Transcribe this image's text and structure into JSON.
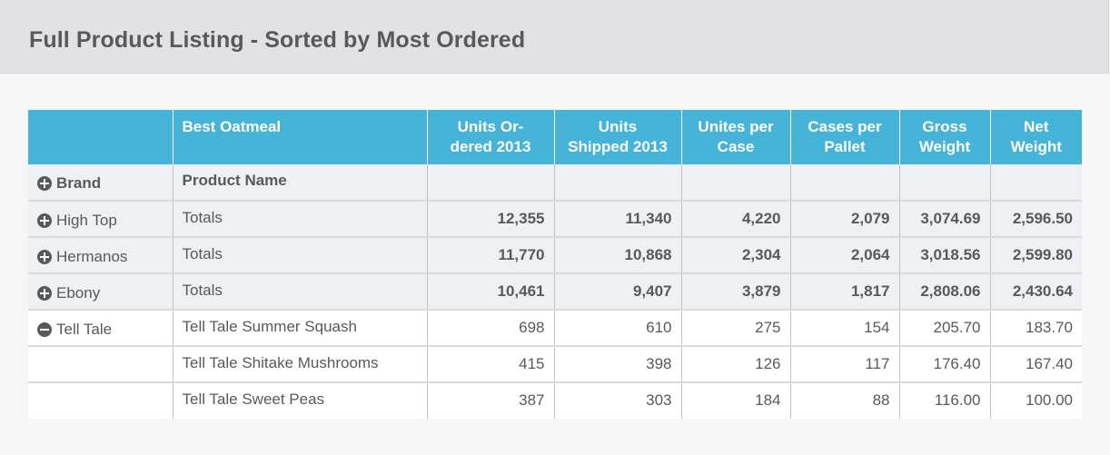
{
  "page": {
    "title": "Full Product Listing - Sorted by Most Ordered"
  },
  "table": {
    "columns": [
      "",
      "Best Oatmeal",
      "Units Or-\ndered 2013",
      "Units\nShipped 2013",
      "Unites per\nCase",
      "Cases per\nPallet",
      "Gross\nWeight",
      "Net\nWeight"
    ],
    "group_header": {
      "brand_label": "Brand",
      "product_label": "Product Name"
    },
    "rows": [
      {
        "brand": "High Top",
        "product": "Totals",
        "values": [
          "12,355",
          "11,340",
          "4,220",
          "2,079",
          "3,074.69",
          "2,596.50"
        ]
      },
      {
        "brand": "Hermanos",
        "product": "Totals",
        "values": [
          "11,770",
          "10,868",
          "2,304",
          "2,064",
          "3,018.56",
          "2,599.80"
        ]
      },
      {
        "brand": "Ebony",
        "product": "Totals",
        "values": [
          "10,461",
          "9,407",
          "3,879",
          "1,817",
          "2,808.06",
          "2,430.64"
        ]
      },
      {
        "brand": "Tell Tale",
        "product": "Tell Tale Summer Squash",
        "values": [
          "698",
          "610",
          "275",
          "154",
          "205.70",
          "183.70"
        ]
      },
      {
        "brand": "",
        "product": "Tell Tale Shitake Mushrooms",
        "values": [
          "415",
          "398",
          "126",
          "117",
          "176.40",
          "167.40"
        ]
      },
      {
        "brand": "",
        "product": "Tell Tale Sweet Peas",
        "values": [
          "387",
          "303",
          "184",
          "88",
          "116.00",
          "100.00"
        ]
      }
    ],
    "icons": {
      "brand_header": "plus-circle-icon",
      "high_top": "plus-circle-icon",
      "hermanos": "plus-circle-icon",
      "ebony": "plus-circle-icon",
      "tell_tale": "minus-circle-icon"
    },
    "colors": {
      "header_bg": "#46b3d8",
      "header_text": "#ffffff",
      "shaded_row": "#eef0f3",
      "text": "#58595b"
    }
  }
}
